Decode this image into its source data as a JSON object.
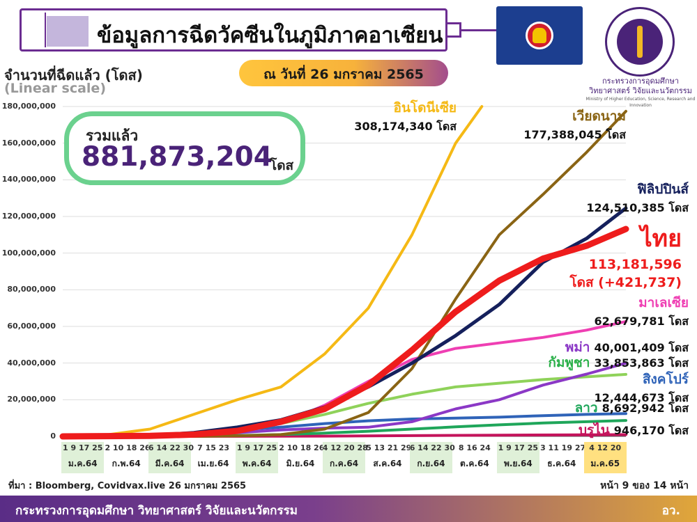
{
  "header": {
    "title": "ข้อมูลการฉีดวัคซีนในภูมิภาคอาเซียน",
    "date_label": "ณ วันที่ 26 มกราคม 2565",
    "ministry_th_1": "กระทรวงการอุดมศึกษา",
    "ministry_th_2": "วิทยาศาสตร์ วิจัยและนวัตกรรม",
    "ministry_en": "Ministry of Higher Education, Science, Research and Innovation"
  },
  "summary": {
    "label": "รวมแล้ว",
    "value": "881,873,204",
    "unit": "โดส"
  },
  "footer": {
    "source": "ที่มา : Bloomberg, Covidvax.live 26 มกราคม 2565",
    "page": "หน้า 9 ของ 14 หน้า",
    "ministry": "กระทรวงการอุดมศึกษา วิทยาศาสตร์ วิจัยและนวัตกรรม",
    "abbr": "อว."
  },
  "colors": {
    "indonesia": "#f5b915",
    "vietnam": "#8a6414",
    "philippines": "#15205c",
    "thailand": "#ee1c1c",
    "malaysia": "#ef3fb3",
    "myanmar": "#8b38c6",
    "cambodia": "#8fd25a",
    "singapore": "#2f63b8",
    "laos": "#1fa65a",
    "brunei": "#c4135b"
  },
  "chart_data": {
    "type": "line",
    "ylabel": "จำนวนที่ฉีดแล้ว (โดส)",
    "yscale_label": "(Linear scale)",
    "ylim": [
      0,
      180000000
    ],
    "yticks": [
      "180,000,000",
      "160,000,000",
      "140,000,000",
      "120,000,000",
      "100,000,000",
      "80,000,000",
      "60,000,000",
      "40,000,000",
      "20,000,000",
      "0"
    ],
    "x_groups": [
      {
        "days": "1 9 17 25",
        "month": "ม.ค.64",
        "shade": true
      },
      {
        "days": "2 10 18 26",
        "month": "ก.พ.64",
        "shade": false
      },
      {
        "days": "6 14 22 30",
        "month": "มี.ค.64",
        "shade": true
      },
      {
        "days": "7 15 23",
        "month": "เม.ย.64",
        "shade": false
      },
      {
        "days": "1 9 17 25",
        "month": "พ.ค.64",
        "shade": true
      },
      {
        "days": "2 10 18 26",
        "month": "มิ.ย.64",
        "shade": false
      },
      {
        "days": "4 12 20 28",
        "month": "ก.ค.64",
        "shade": true
      },
      {
        "days": "5 13 21 29",
        "month": "ส.ค.64",
        "shade": false
      },
      {
        "days": "6 14 22 30",
        "month": "ก.ย.64",
        "shade": true
      },
      {
        "days": "8 16 24",
        "month": "ต.ค.64",
        "shade": false
      },
      {
        "days": "1 9 17 25",
        "month": "พ.ย.64",
        "shade": true
      },
      {
        "days": "3 11 19 27",
        "month": "ธ.ค.64",
        "shade": false
      },
      {
        "days": "4 12 20",
        "month": "ม.ค.65",
        "shade": false,
        "highlight": true
      }
    ],
    "x_range": [
      0,
      12.9
    ],
    "series": [
      {
        "key": "indonesia",
        "name": "อินโดนีเซีย",
        "value_label": "308,174,340 โดส",
        "points": [
          [
            0,
            0
          ],
          [
            1,
            800000
          ],
          [
            2,
            4000000
          ],
          [
            3,
            12000000
          ],
          [
            4,
            20000000
          ],
          [
            5,
            27000000
          ],
          [
            6,
            45000000
          ],
          [
            7,
            70000000
          ],
          [
            8,
            110000000
          ],
          [
            9,
            160000000
          ],
          [
            9.6,
            180000000
          ]
        ]
      },
      {
        "key": "vietnam",
        "name": "เวียดนาม",
        "value_label": "177,388,045 โดส",
        "points": [
          [
            0,
            0
          ],
          [
            3,
            0
          ],
          [
            4,
            300000
          ],
          [
            5,
            1000000
          ],
          [
            6,
            4000000
          ],
          [
            7,
            13000000
          ],
          [
            8,
            37000000
          ],
          [
            9,
            75000000
          ],
          [
            10,
            110000000
          ],
          [
            11,
            132000000
          ],
          [
            12,
            155000000
          ],
          [
            12.9,
            177388045
          ]
        ]
      },
      {
        "key": "philippines",
        "name": "ฟิลิปปินส์",
        "value_label": "124,510,385 โดส",
        "points": [
          [
            0,
            0
          ],
          [
            2,
            500000
          ],
          [
            3,
            2000000
          ],
          [
            4,
            5000000
          ],
          [
            5,
            9000000
          ],
          [
            6,
            16000000
          ],
          [
            7,
            27000000
          ],
          [
            8,
            40000000
          ],
          [
            9,
            55000000
          ],
          [
            10,
            72000000
          ],
          [
            11,
            95000000
          ],
          [
            12,
            108000000
          ],
          [
            12.9,
            124510385
          ]
        ]
      },
      {
        "key": "thailand",
        "name": "ไทย",
        "value_label": "113,181,596",
        "extra_label": "โดส (+421,737)",
        "points": [
          [
            0,
            0
          ],
          [
            2,
            300000
          ],
          [
            3,
            1000000
          ],
          [
            4,
            3000000
          ],
          [
            5,
            8000000
          ],
          [
            6,
            15000000
          ],
          [
            7,
            28000000
          ],
          [
            8,
            47000000
          ],
          [
            9,
            68000000
          ],
          [
            10,
            85000000
          ],
          [
            11,
            97000000
          ],
          [
            12,
            104000000
          ],
          [
            12.9,
            113181596
          ]
        ]
      },
      {
        "key": "malaysia",
        "name": "มาเลเซีย",
        "value_label": "62,679,781 โดส",
        "points": [
          [
            0,
            0
          ],
          [
            2,
            100000
          ],
          [
            3,
            800000
          ],
          [
            4,
            2500000
          ],
          [
            5,
            7000000
          ],
          [
            6,
            17000000
          ],
          [
            7,
            30000000
          ],
          [
            8,
            42000000
          ],
          [
            9,
            48000000
          ],
          [
            10,
            51000000
          ],
          [
            11,
            54000000
          ],
          [
            12,
            58000000
          ],
          [
            12.9,
            62679781
          ]
        ]
      },
      {
        "key": "myanmar",
        "name": "พม่า",
        "value_label": "40,001,409 โดส",
        "points": [
          [
            0,
            0
          ],
          [
            2,
            300000
          ],
          [
            4,
            2000000
          ],
          [
            5,
            3500000
          ],
          [
            6,
            4500000
          ],
          [
            7,
            5000000
          ],
          [
            8,
            8000000
          ],
          [
            9,
            15000000
          ],
          [
            10,
            20000000
          ],
          [
            11,
            28000000
          ],
          [
            12,
            34000000
          ],
          [
            12.9,
            40001409
          ]
        ]
      },
      {
        "key": "cambodia",
        "name": "กัมพูชา",
        "value_label": "33,853,863 โดส",
        "points": [
          [
            0,
            0
          ],
          [
            2,
            200000
          ],
          [
            3,
            1000000
          ],
          [
            4,
            3000000
          ],
          [
            5,
            7000000
          ],
          [
            6,
            12000000
          ],
          [
            7,
            18000000
          ],
          [
            8,
            23000000
          ],
          [
            9,
            27000000
          ],
          [
            10,
            29000000
          ],
          [
            11,
            31000000
          ],
          [
            12,
            32500000
          ],
          [
            12.9,
            33853863
          ]
        ]
      },
      {
        "key": "singapore",
        "name": "สิงคโปร์",
        "value_label": "12,444,673 โดส",
        "points": [
          [
            0,
            0
          ],
          [
            1,
            200000
          ],
          [
            2,
            800000
          ],
          [
            3,
            2000000
          ],
          [
            4,
            3500000
          ],
          [
            5,
            5000000
          ],
          [
            6,
            7000000
          ],
          [
            7,
            8500000
          ],
          [
            8,
            9500000
          ],
          [
            9,
            10000000
          ],
          [
            10,
            10500000
          ],
          [
            11,
            11300000
          ],
          [
            12,
            12000000
          ],
          [
            12.9,
            12444673
          ]
        ]
      },
      {
        "key": "laos",
        "name": "ลาว",
        "value_label": "8,692,942 โดส",
        "points": [
          [
            0,
            0
          ],
          [
            3,
            200000
          ],
          [
            4,
            500000
          ],
          [
            5,
            1000000
          ],
          [
            6,
            1800000
          ],
          [
            7,
            2800000
          ],
          [
            8,
            4000000
          ],
          [
            9,
            5200000
          ],
          [
            10,
            6300000
          ],
          [
            11,
            7300000
          ],
          [
            12,
            8000000
          ],
          [
            12.9,
            8692942
          ]
        ]
      },
      {
        "key": "brunei",
        "name": "บรูไน",
        "value_label": "946,170 โดส",
        "points": [
          [
            0,
            0
          ],
          [
            4,
            50000
          ],
          [
            6,
            150000
          ],
          [
            8,
            400000
          ],
          [
            10,
            700000
          ],
          [
            12,
            880000
          ],
          [
            12.9,
            946170
          ]
        ]
      }
    ]
  }
}
